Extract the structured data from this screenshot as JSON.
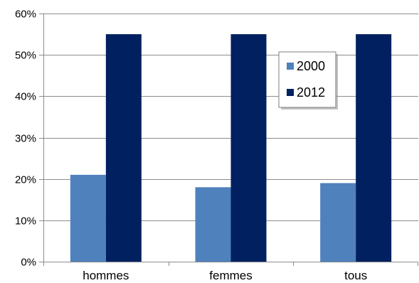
{
  "chart_data": {
    "type": "bar",
    "title": "",
    "xlabel": "",
    "ylabel": "",
    "categories": [
      "hommes",
      "femmes",
      "tous"
    ],
    "series": [
      {
        "name": "2000",
        "values": [
          0.21,
          0.18,
          0.19
        ],
        "color": "#4F81BD"
      },
      {
        "name": "2012",
        "values": [
          0.55,
          0.55,
          0.55
        ],
        "color": "#002060"
      }
    ],
    "ylim": [
      0,
      0.6
    ],
    "yticks": [
      0,
      0.1,
      0.2,
      0.3,
      0.4,
      0.5,
      0.6
    ],
    "ytick_labels": [
      "0%",
      "10%",
      "20%",
      "30%",
      "40%",
      "50%",
      "60%"
    ],
    "grid": true,
    "legend_position": "top-right (inside plot)"
  }
}
